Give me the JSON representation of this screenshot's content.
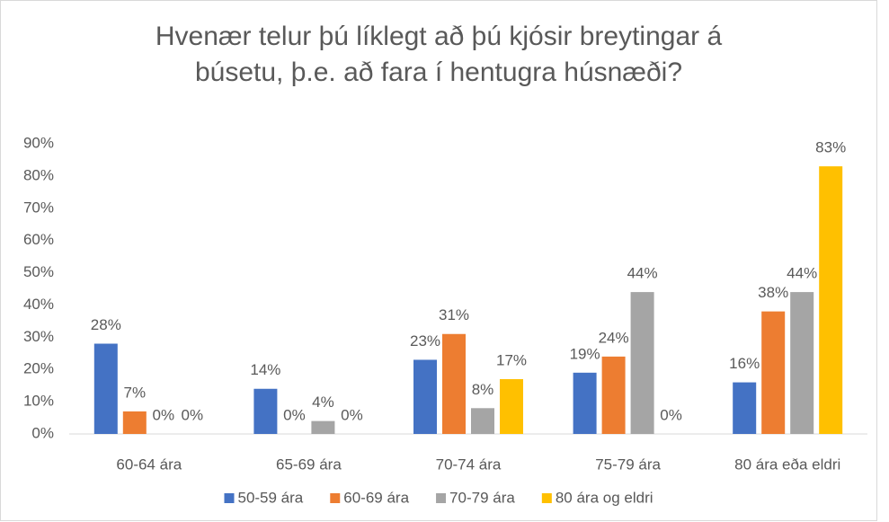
{
  "chart_data": {
    "type": "bar",
    "title": [
      "Hvenær telur þú líklegt að þú kjósir breytingar á",
      "búsetu, þ.e. að fara í hentugra húsnæði?"
    ],
    "categories": [
      "60-64 ára",
      "65-69 ára",
      "70-74 ára",
      "75-79 ára",
      "80 ára eða eldri"
    ],
    "series": [
      {
        "name": "50-59 ára",
        "color": "#4472c4",
        "values": [
          28,
          14,
          23,
          19,
          16
        ],
        "value_labels": [
          "28%",
          "14%",
          "23%",
          "19%",
          "16%"
        ]
      },
      {
        "name": "60-69 ára",
        "color": "#ed7d31",
        "values": [
          7,
          0,
          31,
          24,
          38
        ],
        "value_labels": [
          "7%",
          "0%",
          "31%",
          "24%",
          "38%"
        ]
      },
      {
        "name": "70-79 ára",
        "color": "#a5a5a5",
        "values": [
          0,
          4,
          8,
          44,
          44
        ],
        "value_labels": [
          "0%",
          "4%",
          "8%",
          "44%",
          "44%"
        ]
      },
      {
        "name": "80 ára og eldri",
        "color": "#ffc000",
        "values": [
          0,
          0,
          17,
          0,
          83
        ],
        "value_labels": [
          "0%",
          "0%",
          "17%",
          "0%",
          "83%"
        ]
      }
    ],
    "ylim": [
      0,
      90
    ],
    "yticks": [
      {
        "value": 0,
        "label": "0%"
      },
      {
        "value": 10,
        "label": "10%"
      },
      {
        "value": 20,
        "label": "20%"
      },
      {
        "value": 30,
        "label": "30%"
      },
      {
        "value": 40,
        "label": "40%"
      },
      {
        "value": 50,
        "label": "50%"
      },
      {
        "value": 60,
        "label": "60%"
      },
      {
        "value": 70,
        "label": "70%"
      },
      {
        "value": 80,
        "label": "80%"
      },
      {
        "value": 90,
        "label": "90%"
      }
    ],
    "grid": false,
    "legend": "bottom"
  }
}
